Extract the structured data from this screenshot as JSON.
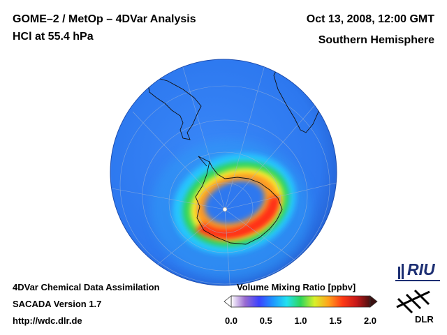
{
  "header": {
    "title_line1": "GOME–2 / MetOp – 4DVar Analysis",
    "title_line2": "HCl at 55.4 hPa",
    "date": "Oct 13, 2008, 12:00 GMT",
    "hemisphere": "Southern Hemisphere"
  },
  "footer": {
    "line1": "4DVar Chemical Data Assimilation",
    "line2": "SACADA Version 1.7",
    "line3": "http://wdc.dlr.de"
  },
  "colorbar": {
    "title": "Volume Mixing Ratio [ppbv]",
    "ticks": [
      "0.0",
      "0.5",
      "1.0",
      "1.5",
      "2.0"
    ],
    "range": [
      0.0,
      2.0
    ],
    "colors": [
      "#ffffff",
      "#9a6bd0",
      "#3c42ff",
      "#1e96ff",
      "#22e1f0",
      "#2ed65a",
      "#d8f02a",
      "#ffa21c",
      "#ff3a14",
      "#c81818",
      "#4a1010"
    ]
  },
  "map": {
    "background_level": "#2c78f0",
    "ring_colors": [
      "#27c6ff",
      "#2ed65a",
      "#fbf230",
      "#ff9a20",
      "#ff2d16"
    ]
  },
  "logos": {
    "riu": "RIU",
    "dlr": "DLR"
  }
}
